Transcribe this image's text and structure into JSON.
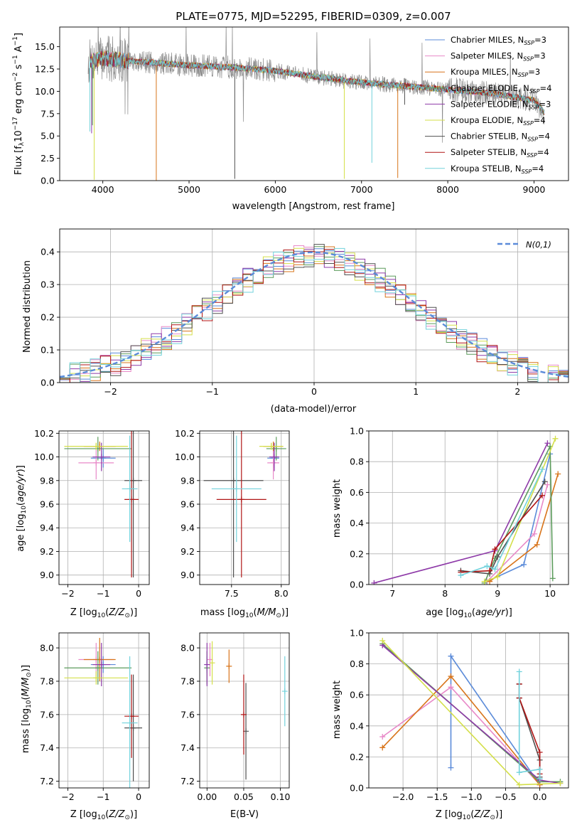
{
  "colors": {
    "Chabrier MILES": "#5b8bd9",
    "Salpeter MILES": "#e889c8",
    "Kroupa MILES": "#d8741a",
    "Chabrier ELODIE": "#5c9c5c",
    "Salpeter ELODIE": "#8e3aa8",
    "Kroupa ELODIE": "#d4df4a",
    "Chabrier STELIB": "#505050",
    "Salpeter STELIB": "#b01515",
    "Kroupa STELIB": "#72d2dc",
    "data": "#8c8c8c",
    "normal": "#5b8bd9"
  },
  "chart_data": [
    {
      "id": "spectrum",
      "type": "line",
      "title": "PLATE=0775, MJD=52295, FIBERID=0309, z=0.007",
      "xlabel": "wavelength [Angstrom, rest frame]",
      "ylabel": "Flux [f_λ 10^-17 erg cm^-2 s^-1 A^-1]",
      "xlim": [
        3500,
        9400
      ],
      "ylim": [
        0,
        17.2
      ],
      "xticks": [
        4000,
        5000,
        6000,
        7000,
        8000,
        9000
      ],
      "yticks": [
        0.0,
        2.5,
        5.0,
        7.5,
        10.0,
        12.5,
        15.0
      ],
      "legend_position": "top-right",
      "continuum_anchors": [
        [
          3830,
          13.3
        ],
        [
          4000,
          13.7
        ],
        [
          4300,
          13.4
        ],
        [
          4600,
          13.2
        ],
        [
          5000,
          12.9
        ],
        [
          5500,
          12.7
        ],
        [
          6000,
          12.3
        ],
        [
          6500,
          11.6
        ],
        [
          7000,
          11.0
        ],
        [
          7500,
          10.6
        ],
        [
          8000,
          10.2
        ],
        [
          8500,
          9.8
        ],
        [
          9000,
          9.0
        ],
        [
          9120,
          7.6
        ]
      ],
      "legend": [
        {
          "name": "Chabrier MILES",
          "nssp": "3"
        },
        {
          "name": "Salpeter MILES",
          "nssp": "3"
        },
        {
          "name": "Kroupa MILES",
          "nssp": "3"
        },
        {
          "name": "Chabrier ELODIE",
          "nssp": "4"
        },
        {
          "name": "Salpeter ELODIE",
          "nssp": "3"
        },
        {
          "name": "Kroupa ELODIE",
          "nssp": "4"
        },
        {
          "name": "Chabrier STELIB",
          "nssp": "4"
        },
        {
          "name": "Salpeter STELIB",
          "nssp": "4"
        },
        {
          "name": "Kroupa STELIB",
          "nssp": "4"
        }
      ]
    },
    {
      "id": "residuals",
      "type": "area",
      "xlabel": "(data-model)/error",
      "ylabel": "Normed distribution",
      "xlim": [
        -2.5,
        2.5
      ],
      "ylim": [
        0,
        0.47
      ],
      "xticks": [
        -2,
        -1,
        0,
        1,
        2
      ],
      "yticks": [
        0.0,
        0.1,
        0.2,
        0.3,
        0.4
      ],
      "bin_width": 0.1,
      "curve_label": "N(0,1)",
      "legend_position": "top-right"
    },
    {
      "id": "age_vs_Z",
      "type": "scatter",
      "xlabel": "Z [log10(Z/Z⊙)]",
      "ylabel": "age [log10(age/yr)]",
      "xlim": [
        -2.25,
        0.3
      ],
      "ylim": [
        8.92,
        10.22
      ],
      "xticks": [
        -2,
        -1,
        0
      ],
      "yticks": [
        9.0,
        9.2,
        9.4,
        9.6,
        9.8,
        10.0,
        10.2
      ],
      "points": [
        {
          "model": "Chabrier MILES",
          "x": -1.0,
          "y": 9.99,
          "xerr": 0.35,
          "yerr": 0.08
        },
        {
          "model": "Salpeter MILES",
          "x": -1.2,
          "y": 9.95,
          "xerr": 0.5,
          "yerr": 0.14
        },
        {
          "model": "Kroupa MILES",
          "x": -1.1,
          "y": 10.09,
          "xerr": 0.45,
          "yerr": 0.04
        },
        {
          "model": "Chabrier ELODIE",
          "x": -1.15,
          "y": 10.07,
          "xerr": 0.95,
          "yerr": 0.1
        },
        {
          "model": "Salpeter ELODIE",
          "x": -1.05,
          "y": 10.0,
          "xerr": 0.25,
          "yerr": 0.12
        },
        {
          "model": "Kroupa ELODIE",
          "x": -1.2,
          "y": 10.09,
          "xerr": 0.9,
          "yerr": 0.03
        },
        {
          "model": "Chabrier STELIB",
          "x": -0.15,
          "y": 9.8,
          "xerr": 0.25,
          "yerr": 0.82
        },
        {
          "model": "Salpeter STELIB",
          "x": -0.2,
          "y": 9.64,
          "xerr": 0.2,
          "yerr": 0.66
        },
        {
          "model": "Kroupa STELIB",
          "x": -0.25,
          "y": 9.73,
          "xerr": 0.22,
          "yerr": 0.45
        }
      ]
    },
    {
      "id": "age_vs_mass",
      "type": "scatter",
      "xlabel": "mass [log10(M/M⊙)]",
      "xlim": [
        7.18,
        8.08
      ],
      "ylim": [
        8.92,
        10.22
      ],
      "xticks": [
        7.5,
        8.0
      ],
      "yticks": [
        9.0,
        9.2,
        9.4,
        9.6,
        9.8,
        10.0,
        10.2
      ],
      "points": [
        {
          "model": "Chabrier MILES",
          "x": 7.92,
          "y": 9.99,
          "xerr": 0.06,
          "yerr": 0.08
        },
        {
          "model": "Salpeter MILES",
          "x": 7.92,
          "y": 9.95,
          "xerr": 0.06,
          "yerr": 0.14
        },
        {
          "model": "Kroupa MILES",
          "x": 7.92,
          "y": 10.09,
          "xerr": 0.1,
          "yerr": 0.04
        },
        {
          "model": "Chabrier ELODIE",
          "x": 7.95,
          "y": 10.07,
          "xerr": 0.1,
          "yerr": 0.1
        },
        {
          "model": "Salpeter ELODIE",
          "x": 7.93,
          "y": 10.0,
          "xerr": 0.05,
          "yerr": 0.12
        },
        {
          "model": "Kroupa ELODIE",
          "x": 7.9,
          "y": 10.09,
          "xerr": 0.12,
          "yerr": 0.03
        },
        {
          "model": "Chabrier STELIB",
          "x": 7.52,
          "y": 9.8,
          "xerr": 0.3,
          "yerr": 0.82
        },
        {
          "model": "Salpeter STELIB",
          "x": 7.6,
          "y": 9.64,
          "xerr": 0.25,
          "yerr": 0.66
        },
        {
          "model": "Kroupa STELIB",
          "x": 7.55,
          "y": 9.73,
          "xerr": 0.25,
          "yerr": 0.45
        }
      ]
    },
    {
      "id": "massweight_vs_age",
      "type": "line",
      "xlabel": "age [log10(age/yr)]",
      "ylabel": "mass weight",
      "xlim": [
        6.55,
        10.35
      ],
      "ylim": [
        0,
        1.0
      ],
      "xticks": [
        7,
        8,
        9,
        10
      ],
      "yticks": [
        0.0,
        0.2,
        0.4,
        0.6,
        0.8,
        1.0
      ],
      "series": [
        {
          "model": "Chabrier MILES",
          "x": [
            8.8,
            9.5,
            10.0
          ],
          "y": [
            0.02,
            0.13,
            0.85
          ]
        },
        {
          "model": "Salpeter MILES",
          "x": [
            8.8,
            9.7,
            9.95
          ],
          "y": [
            0.02,
            0.33,
            0.65
          ]
        },
        {
          "model": "Kroupa MILES",
          "x": [
            8.85,
            9.75,
            10.15
          ],
          "y": [
            0.02,
            0.26,
            0.72
          ]
        },
        {
          "model": "Chabrier ELODIE",
          "x": [
            8.75,
            8.95,
            10.0,
            10.05
          ],
          "y": [
            0.01,
            0.17,
            0.9,
            0.04
          ]
        },
        {
          "model": "Salpeter ELODIE",
          "x": [
            6.65,
            8.95,
            9.95
          ],
          "y": [
            0.01,
            0.22,
            0.92
          ]
        },
        {
          "model": "Kroupa ELODIE",
          "x": [
            8.75,
            9.0,
            10.1
          ],
          "y": [
            0.02,
            0.05,
            0.95
          ]
        },
        {
          "model": "Chabrier STELIB",
          "x": [
            8.3,
            8.85,
            9.0,
            9.9
          ],
          "y": [
            0.09,
            0.07,
            0.18,
            0.67
          ]
        },
        {
          "model": "Salpeter STELIB",
          "x": [
            8.3,
            8.85,
            8.95,
            9.85
          ],
          "y": [
            0.08,
            0.09,
            0.23,
            0.58
          ]
        },
        {
          "model": "Kroupa STELIB",
          "x": [
            8.3,
            8.8,
            8.95,
            9.85
          ],
          "y": [
            0.06,
            0.12,
            0.1,
            0.75
          ]
        }
      ]
    },
    {
      "id": "mass_vs_Z",
      "type": "scatter",
      "xlabel": "Z [log10(Z/Z⊙)]",
      "ylabel": "mass [log10(M/M⊙)]",
      "xlim": [
        -2.25,
        0.3
      ],
      "ylim": [
        7.16,
        8.09
      ],
      "xticks": [
        -2,
        -1,
        0
      ],
      "yticks": [
        7.2,
        7.4,
        7.6,
        7.8,
        8.0
      ],
      "points": [
        {
          "model": "Chabrier MILES",
          "x": -1.0,
          "y": 7.9,
          "xerr": 0.35,
          "yerr": 0.05
        },
        {
          "model": "Salpeter MILES",
          "x": -1.2,
          "y": 7.93,
          "xerr": 0.5,
          "yerr": 0.1
        },
        {
          "model": "Kroupa MILES",
          "x": -1.1,
          "y": 7.93,
          "xerr": 0.45,
          "yerr": 0.13
        },
        {
          "model": "Chabrier ELODIE",
          "x": -1.15,
          "y": 7.88,
          "xerr": 0.95,
          "yerr": 0.1
        },
        {
          "model": "Salpeter ELODIE",
          "x": -1.05,
          "y": 7.9,
          "xerr": 0.25,
          "yerr": 0.13
        },
        {
          "model": "Kroupa ELODIE",
          "x": -1.2,
          "y": 7.82,
          "xerr": 0.9,
          "yerr": 0.04
        },
        {
          "model": "Chabrier STELIB",
          "x": -0.15,
          "y": 7.52,
          "xerr": 0.25,
          "yerr": 0.32
        },
        {
          "model": "Salpeter STELIB",
          "x": -0.2,
          "y": 7.59,
          "xerr": 0.2,
          "yerr": 0.25
        },
        {
          "model": "Kroupa STELIB",
          "x": -0.25,
          "y": 7.55,
          "xerr": 0.22,
          "yerr": 0.4
        }
      ]
    },
    {
      "id": "mass_vs_ebv",
      "type": "scatter",
      "xlabel": "E(B-V)",
      "xlim": [
        -0.01,
        0.112
      ],
      "ylim": [
        7.16,
        8.09
      ],
      "xticks": [
        0.0,
        0.05,
        0.1
      ],
      "yticks": [
        7.2,
        7.4,
        7.6,
        7.8,
        8.0
      ],
      "points": [
        {
          "model": "Chabrier MILES",
          "x": 0.0,
          "y": 7.9,
          "yerr": 0.05
        },
        {
          "model": "Salpeter MILES",
          "x": 0.004,
          "y": 7.93,
          "yerr": 0.1
        },
        {
          "model": "Kroupa MILES",
          "x": 0.03,
          "y": 7.89,
          "yerr": 0.1
        },
        {
          "model": "Chabrier ELODIE",
          "x": 0.0,
          "y": 7.88,
          "yerr": 0.1
        },
        {
          "model": "Salpeter ELODIE",
          "x": 0.0,
          "y": 7.9,
          "yerr": 0.13
        },
        {
          "model": "Kroupa ELODIE",
          "x": 0.007,
          "y": 7.91,
          "yerr": 0.13
        },
        {
          "model": "Chabrier STELIB",
          "x": 0.053,
          "y": 7.5,
          "yerr": 0.29
        },
        {
          "model": "Salpeter STELIB",
          "x": 0.05,
          "y": 7.6,
          "yerr": 0.24
        },
        {
          "model": "Kroupa STELIB",
          "x": 0.106,
          "y": 7.74,
          "yerr": 0.21
        }
      ]
    },
    {
      "id": "massweight_vs_Z",
      "type": "line",
      "xlabel": "Z [log10(Z/Z⊙)]",
      "ylabel": "mass weight",
      "xlim": [
        -2.5,
        0.42
      ],
      "ylim": [
        0,
        1.0
      ],
      "xticks": [
        -2.0,
        -1.5,
        -1.0,
        -0.5,
        0.0
      ],
      "yticks": [
        0.0,
        0.2,
        0.4,
        0.6,
        0.8,
        1.0
      ],
      "series": [
        {
          "model": "Chabrier MILES",
          "x": [
            -1.3,
            -1.3,
            0.0
          ],
          "y": [
            0.13,
            0.85,
            0.02
          ]
        },
        {
          "model": "Salpeter MILES",
          "x": [
            -2.3,
            -1.3,
            0.0
          ],
          "y": [
            0.33,
            0.65,
            0.02
          ]
        },
        {
          "model": "Kroupa MILES",
          "x": [
            -2.3,
            -1.3,
            0.0
          ],
          "y": [
            0.26,
            0.72,
            0.02
          ]
        },
        {
          "model": "Chabrier ELODIE",
          "x": [
            -2.3,
            0.0,
            0.3
          ],
          "y": [
            0.93,
            0.04,
            0.04
          ]
        },
        {
          "model": "Salpeter ELODIE",
          "x": [
            -2.3,
            0.0,
            0.3
          ],
          "y": [
            0.92,
            0.05,
            0.03
          ]
        },
        {
          "model": "Kroupa ELODIE",
          "x": [
            -2.3,
            -0.3,
            0.3
          ],
          "y": [
            0.95,
            0.02,
            0.03
          ]
        },
        {
          "model": "Chabrier STELIB",
          "x": [
            -0.3,
            -0.3,
            0.0,
            0.0
          ],
          "y": [
            0.67,
            0.58,
            0.18,
            0.07
          ]
        },
        {
          "model": "Salpeter STELIB",
          "x": [
            -0.3,
            -0.3,
            0.0,
            0.0
          ],
          "y": [
            0.67,
            0.58,
            0.23,
            0.09
          ]
        },
        {
          "model": "Kroupa STELIB",
          "x": [
            -0.3,
            -0.3,
            0.0,
            0.0
          ],
          "y": [
            0.75,
            0.1,
            0.12,
            0.06
          ]
        }
      ]
    }
  ]
}
